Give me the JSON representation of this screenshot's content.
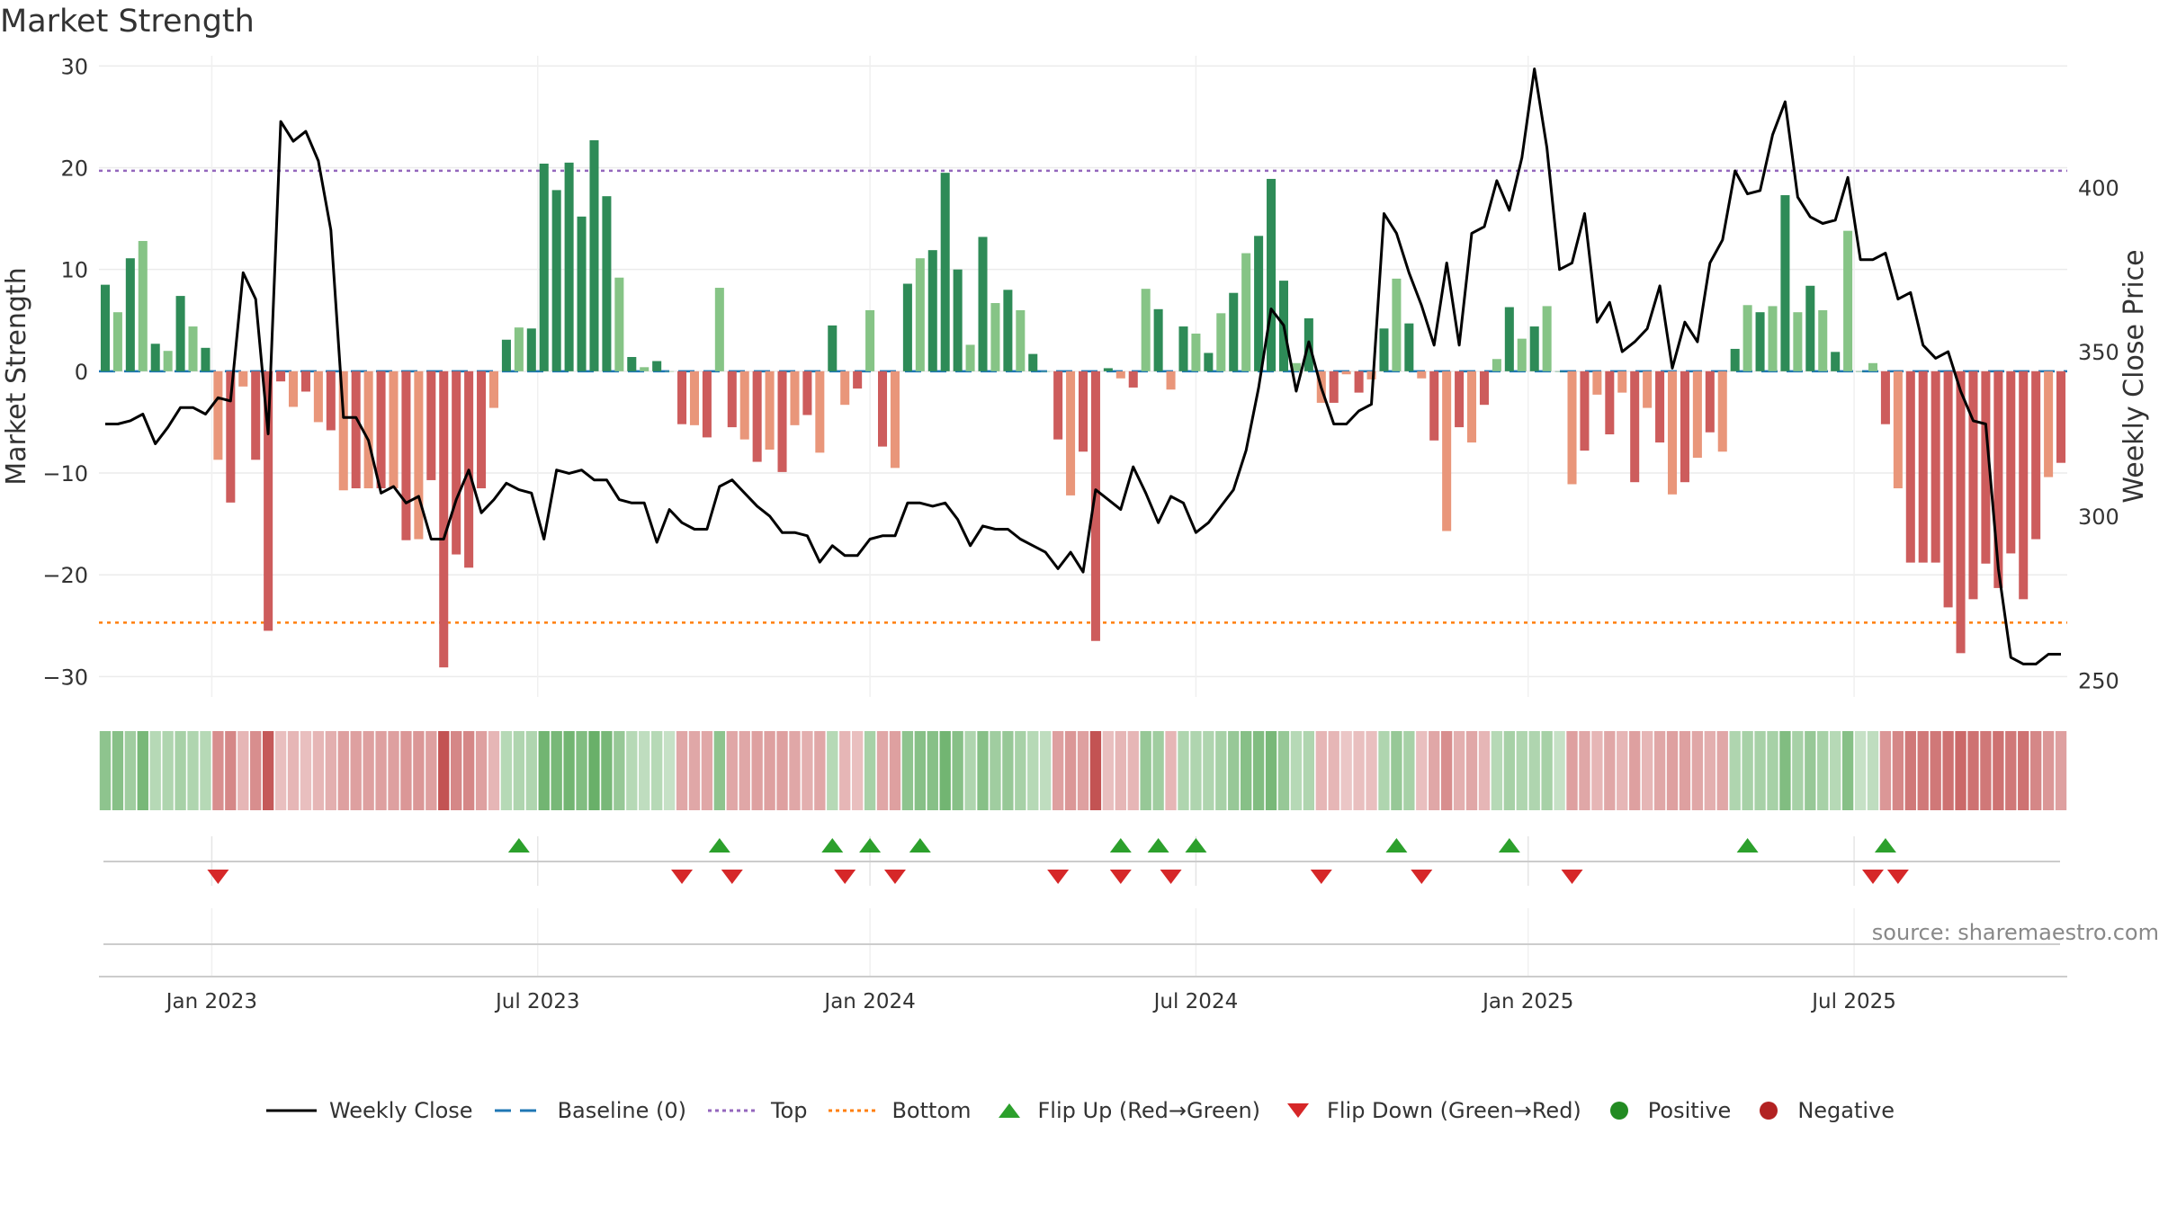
{
  "title": "Market Strength",
  "source": "source: sharemaestro.com",
  "colors": {
    "pos_dark": "#2e8b57",
    "pos_light": "#86c486",
    "neg_dark": "#cd5c5c",
    "neg_light": "#e9967a",
    "price": "#000000",
    "baseline": "#1f77b4",
    "top": "#9467bd",
    "bottom": "#ff7f0e",
    "flip_up": "#2ca02c",
    "flip_down": "#d62728",
    "positive": "#228b22",
    "negative": "#b22222"
  },
  "chart_data": {
    "type": "bar",
    "title": "Market Strength",
    "ylabel": "Market Strength",
    "y2label": "Weekly Close Price",
    "ylim": [
      -32,
      31
    ],
    "y2lim": [
      245,
      440
    ],
    "yticks": [
      30,
      20,
      10,
      0,
      -10,
      -20,
      -30
    ],
    "ytick_labels": [
      "30",
      "20",
      "10",
      "0",
      "−10",
      "−20",
      "−30"
    ],
    "y2ticks": [
      400,
      350,
      300,
      250
    ],
    "y2tick_labels": [
      "400",
      "350",
      "300",
      "250"
    ],
    "top_level": 19.7,
    "bottom_level": -24.7,
    "x_start": "2022-10-31",
    "x_end": "2025-09-01",
    "xticks": [
      {
        "label": "Jan 2023",
        "week": 9
      },
      {
        "label": "Jul 2023",
        "week": 35
      },
      {
        "label": "Jan 2024",
        "week": 61.5
      },
      {
        "label": "Jul 2024",
        "week": 87.5
      },
      {
        "label": "Jan 2025",
        "week": 114
      },
      {
        "label": "Jul 2025",
        "week": 140
      }
    ],
    "strength": [
      8.5,
      5.8,
      11.1,
      12.8,
      2.7,
      2.0,
      7.4,
      4.4,
      2.3,
      -8.7,
      -12.9,
      -1.5,
      -8.7,
      -25.5,
      -1.0,
      -3.5,
      -2.0,
      -5.0,
      -5.8,
      -11.7,
      -11.5,
      -11.5,
      -11.5,
      -11.5,
      -16.6,
      -16.5,
      -10.7,
      -29.1,
      -18.0,
      -19.3,
      -11.5,
      -3.6,
      3.1,
      4.3,
      4.2,
      20.4,
      17.8,
      20.5,
      15.2,
      22.7,
      17.2,
      9.2,
      1.4,
      0.4,
      1.0,
      0.0,
      -5.2,
      -5.3,
      -6.5,
      8.2,
      -5.5,
      -6.7,
      -8.9,
      -7.7,
      -9.9,
      -5.3,
      -4.3,
      -8.0,
      4.5,
      -3.3,
      -1.7,
      6.0,
      -7.4,
      -9.5,
      8.6,
      11.1,
      11.9,
      19.5,
      10.0,
      2.6,
      13.2,
      6.7,
      8.0,
      6.0,
      1.7,
      0.0,
      -6.7,
      -12.2,
      -7.9,
      -26.5,
      0.3,
      -0.7,
      -1.6,
      8.1,
      6.1,
      -1.8,
      4.4,
      3.7,
      1.8,
      5.7,
      7.7,
      11.6,
      13.3,
      18.9,
      8.9,
      0.8,
      5.2,
      -3.1,
      -3.1,
      -0.3,
      -2.1,
      -0.8,
      4.2,
      9.1,
      4.7,
      -0.7,
      -6.8,
      -15.7,
      -5.5,
      -7.0,
      -3.3,
      1.2,
      6.3,
      3.2,
      4.4,
      6.4,
      0.0,
      -11.1,
      -7.8,
      -2.3,
      -6.2,
      -2.1,
      -10.9,
      -3.6,
      -7.0,
      -12.1,
      -10.9,
      -8.5,
      -6.0,
      -7.9,
      2.2,
      6.5,
      5.8,
      6.4,
      17.3,
      5.8,
      8.4,
      6.0,
      1.9,
      13.8,
      0.0,
      0.8,
      -5.2,
      -11.5,
      -18.8,
      -18.8,
      -18.8,
      -23.2,
      -27.7,
      -22.4,
      -18.9,
      -21.3,
      -17.9,
      -22.4,
      -16.5,
      -10.4,
      -9.0
    ],
    "price": [
      328,
      328,
      329,
      331,
      322,
      327,
      333,
      333,
      331,
      336,
      335,
      374,
      366,
      325,
      420,
      414,
      417,
      408,
      387,
      330,
      330,
      323,
      307,
      309,
      304,
      306,
      293,
      293,
      305,
      314,
      301,
      305,
      310,
      308,
      307,
      293,
      314,
      313,
      314,
      311,
      311,
      305,
      304,
      304,
      292,
      302,
      298,
      296,
      296,
      309,
      311,
      307,
      303,
      300,
      295,
      295,
      294,
      286,
      291,
      288,
      288,
      293,
      294,
      294,
      304,
      304,
      303,
      304,
      299,
      291,
      297,
      296,
      296,
      293,
      291,
      289,
      284,
      289,
      283,
      308,
      305,
      302,
      315,
      307,
      298,
      306,
      304,
      295,
      298,
      303,
      308,
      320,
      339,
      363,
      358,
      338,
      353,
      339,
      328,
      328,
      332,
      334,
      392,
      386,
      374,
      364,
      352,
      377,
      352,
      386,
      388,
      402,
      393,
      409,
      436,
      412,
      375,
      377,
      392,
      359,
      365,
      350,
      353,
      357,
      370,
      345,
      359,
      353,
      377,
      384,
      405,
      398,
      399,
      416,
      426,
      397,
      391,
      389,
      390,
      403,
      378,
      378,
      380,
      366,
      368,
      352,
      348,
      350,
      338,
      329,
      328,
      284,
      257,
      255,
      255,
      258,
      258
    ],
    "flip_up_weeks": [
      33,
      49,
      58,
      61,
      65,
      81,
      84,
      87,
      103,
      112,
      131,
      142
    ],
    "flip_down_weeks": [
      9,
      46,
      50,
      59,
      63,
      76,
      81,
      85,
      97,
      105,
      117,
      141,
      143
    ],
    "heat": [
      0.55,
      0.6,
      0.45,
      0.7,
      0.3,
      0.35,
      0.4,
      0.35,
      0.3,
      -0.55,
      -0.6,
      -0.3,
      -0.55,
      -0.9,
      -0.25,
      -0.3,
      -0.25,
      -0.3,
      -0.35,
      -0.45,
      -0.45,
      -0.45,
      -0.45,
      -0.45,
      -0.5,
      -0.5,
      -0.45,
      -0.95,
      -0.6,
      -0.6,
      -0.45,
      -0.3,
      0.3,
      0.35,
      0.35,
      0.75,
      0.7,
      0.75,
      0.65,
      0.8,
      0.7,
      0.5,
      0.3,
      0.25,
      0.3,
      0.2,
      -0.4,
      -0.4,
      -0.4,
      0.55,
      -0.4,
      -0.4,
      -0.45,
      -0.45,
      -0.45,
      -0.4,
      -0.35,
      -0.4,
      0.3,
      -0.3,
      -0.25,
      0.4,
      -0.4,
      -0.45,
      0.55,
      0.6,
      0.6,
      0.75,
      0.6,
      0.35,
      0.6,
      0.45,
      0.5,
      0.4,
      0.3,
      0.25,
      -0.45,
      -0.5,
      -0.45,
      -0.95,
      -0.25,
      -0.3,
      -0.3,
      0.5,
      0.45,
      -0.3,
      0.35,
      0.35,
      0.35,
      0.4,
      0.5,
      0.6,
      0.65,
      0.7,
      0.5,
      0.3,
      0.35,
      -0.3,
      -0.3,
      -0.2,
      -0.25,
      -0.25,
      0.35,
      0.5,
      0.4,
      -0.25,
      -0.4,
      -0.55,
      -0.35,
      -0.4,
      -0.3,
      0.3,
      0.4,
      0.35,
      0.35,
      0.4,
      0.2,
      -0.45,
      -0.4,
      -0.3,
      -0.4,
      -0.3,
      -0.45,
      -0.3,
      -0.4,
      -0.45,
      -0.45,
      -0.4,
      -0.35,
      -0.4,
      0.35,
      0.4,
      0.4,
      0.4,
      0.65,
      0.4,
      0.5,
      0.4,
      0.3,
      0.6,
      0.2,
      0.25,
      -0.5,
      -0.6,
      -0.7,
      -0.7,
      -0.7,
      -0.75,
      -0.8,
      -0.75,
      -0.7,
      -0.75,
      -0.7,
      -0.75,
      -0.6,
      -0.5,
      -0.45
    ]
  },
  "legend": [
    {
      "label": "Weekly Close",
      "icon": "line-solid"
    },
    {
      "label": "Baseline (0)",
      "icon": "line-dashed"
    },
    {
      "label": "Top",
      "icon": "line-dotted-purple"
    },
    {
      "label": "Bottom",
      "icon": "line-dotted-orange"
    },
    {
      "label": "Flip Up (Red→Green)",
      "icon": "triangle-up"
    },
    {
      "label": "Flip Down (Green→Red)",
      "icon": "triangle-down"
    },
    {
      "label": "Positive",
      "icon": "circle-green"
    },
    {
      "label": "Negative",
      "icon": "circle-red"
    }
  ]
}
